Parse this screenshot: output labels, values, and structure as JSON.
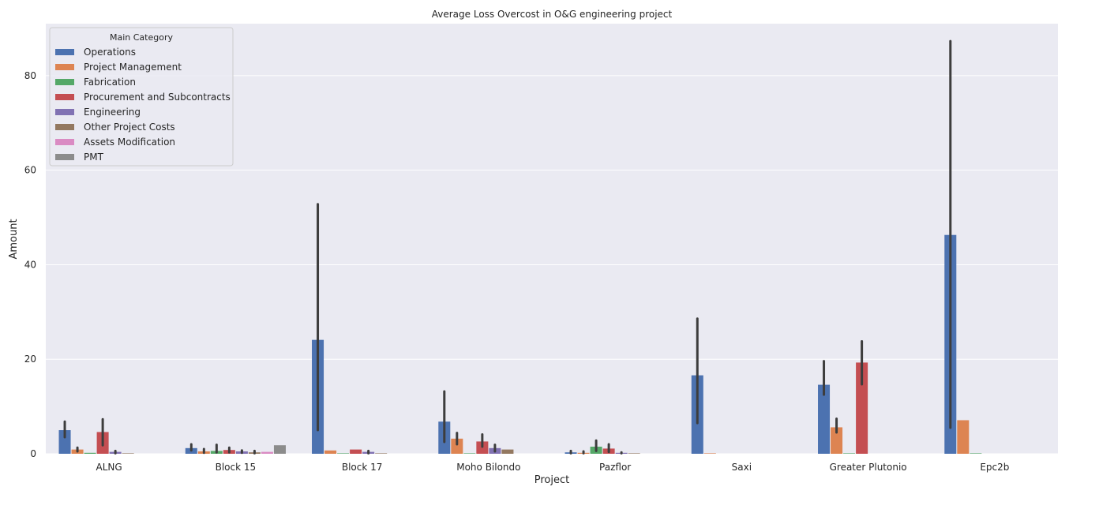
{
  "chart_data": {
    "type": "bar",
    "title": "Average Loss Overcost in O&G engineering project",
    "xlabel": "Project",
    "ylabel": "Amount",
    "ylim": [
      0,
      91
    ],
    "yticks": [
      0,
      20,
      40,
      60,
      80
    ],
    "grid": true,
    "legend": {
      "title": "Main Category",
      "placement": "top-left"
    },
    "categories": [
      "ALNG",
      "Block 15",
      "Block 17",
      "Moho Bilondo",
      "Pazflor",
      "Saxi",
      "Greater Plutonio",
      "Epc2b"
    ],
    "series": [
      {
        "name": "Operations",
        "color": "#4c72b0",
        "values": [
          5.0,
          1.2,
          24.1,
          6.8,
          0.3,
          16.6,
          14.6,
          46.3
        ],
        "err_low": [
          3.5,
          0.7,
          5.0,
          2.5,
          0.1,
          6.5,
          12.5,
          5.5
        ],
        "err_high": [
          6.8,
          2.0,
          52.8,
          13.2,
          0.6,
          28.6,
          19.6,
          87.3
        ]
      },
      {
        "name": "Project Management",
        "color": "#dd8452",
        "values": [
          0.9,
          0.5,
          0.7,
          3.2,
          0.2,
          0.1,
          5.6,
          7.1
        ],
        "err_low": [
          0.5,
          0.2,
          null,
          2.0,
          0.1,
          null,
          4.5,
          null
        ],
        "err_high": [
          1.3,
          1.0,
          null,
          4.4,
          0.5,
          null,
          7.4,
          null
        ]
      },
      {
        "name": "Fabrication",
        "color": "#55a868",
        "values": [
          0.2,
          0.6,
          0.1,
          0.1,
          1.5,
          null,
          0.1,
          0.1
        ],
        "err_low": [
          null,
          0.3,
          null,
          null,
          0.6,
          null,
          null,
          null
        ],
        "err_high": [
          null,
          1.9,
          null,
          null,
          2.8,
          null,
          null,
          null
        ]
      },
      {
        "name": "Procurement and Subcontracts",
        "color": "#c44e52",
        "values": [
          4.6,
          0.8,
          0.9,
          2.6,
          1.1,
          null,
          19.3,
          null
        ],
        "err_low": [
          1.8,
          0.3,
          null,
          1.5,
          0.4,
          null,
          14.7,
          null
        ],
        "err_high": [
          7.3,
          1.3,
          null,
          4.1,
          2.0,
          null,
          23.8,
          null
        ]
      },
      {
        "name": "Engineering",
        "color": "#8172b3",
        "values": [
          0.4,
          0.5,
          0.4,
          1.2,
          0.2,
          null,
          null,
          null
        ],
        "err_low": [
          0.1,
          0.2,
          0.1,
          0.5,
          0.1,
          null,
          null,
          null
        ],
        "err_high": [
          0.6,
          0.7,
          0.6,
          1.9,
          0.3,
          null,
          null,
          null
        ]
      },
      {
        "name": "Other Project Costs",
        "color": "#937860",
        "values": [
          0.1,
          0.3,
          0.1,
          0.9,
          0.1,
          null,
          null,
          null
        ],
        "err_low": [
          null,
          0.1,
          null,
          null,
          null,
          null,
          null,
          null
        ],
        "err_high": [
          null,
          0.6,
          null,
          null,
          null,
          null,
          null,
          null
        ]
      },
      {
        "name": "Assets Modification",
        "color": "#da8bc3",
        "values": [
          null,
          0.4,
          null,
          null,
          null,
          null,
          null,
          null
        ],
        "err_low": [
          null,
          null,
          null,
          null,
          null,
          null,
          null,
          null
        ],
        "err_high": [
          null,
          null,
          null,
          null,
          null,
          null,
          null,
          null
        ]
      },
      {
        "name": "PMT",
        "color": "#8c8c8c",
        "values": [
          null,
          1.8,
          null,
          null,
          null,
          null,
          null,
          null
        ],
        "err_low": [
          null,
          null,
          null,
          null,
          null,
          null,
          null,
          null
        ],
        "err_high": [
          null,
          null,
          null,
          null,
          null,
          null,
          null,
          null
        ]
      }
    ]
  }
}
